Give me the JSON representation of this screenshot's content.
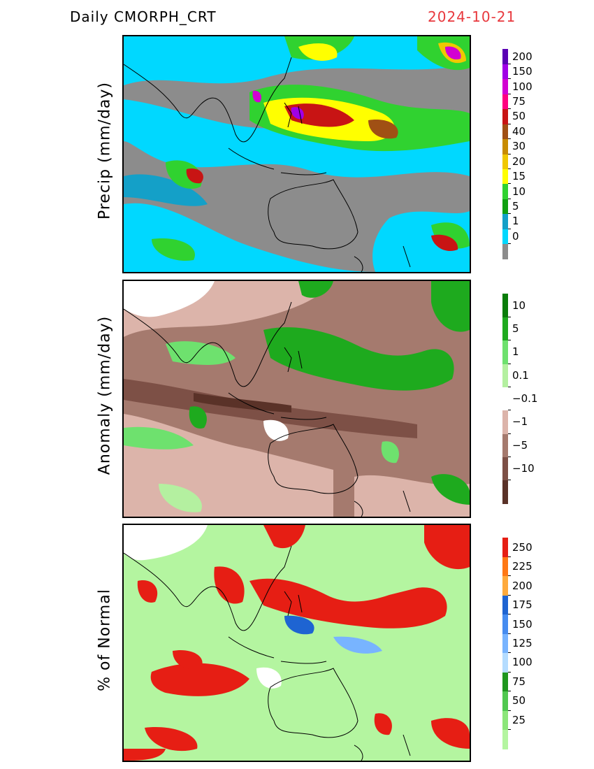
{
  "header": {
    "title": "Daily CMORPH_CRT",
    "date": "2024-10-21"
  },
  "panels": [
    {
      "id": "precip",
      "ylabel": "Precip (mm/day)",
      "colorbar": [
        {
          "color": "#8c8c8c",
          "label": ""
        },
        {
          "color": "#00d8ff",
          "label": "0"
        },
        {
          "color": "#14a0c8",
          "label": "1"
        },
        {
          "color": "#10a010",
          "label": "5"
        },
        {
          "color": "#30d230",
          "label": "10"
        },
        {
          "color": "#ffff00",
          "label": "15"
        },
        {
          "color": "#f0c800",
          "label": "20"
        },
        {
          "color": "#c88c00",
          "label": "30"
        },
        {
          "color": "#a05014",
          "label": "40"
        },
        {
          "color": "#c81414",
          "label": "50"
        },
        {
          "color": "#ff0080",
          "label": "75"
        },
        {
          "color": "#d200d2",
          "label": "100"
        },
        {
          "color": "#a000e6",
          "label": "150"
        },
        {
          "color": "#5a00b4",
          "label": "200"
        }
      ]
    },
    {
      "id": "anomaly",
      "ylabel": "Anomaly (mm/day)",
      "colorbar": [
        {
          "color": "#5a3228",
          "label": ""
        },
        {
          "color": "#7d5046",
          "label": "−10"
        },
        {
          "color": "#a57a6e",
          "label": "−5"
        },
        {
          "color": "#dcb4aa",
          "label": "−1"
        },
        {
          "color": "#ffffff",
          "label": "−0.1"
        },
        {
          "color": "#b4f0a0",
          "label": "0.1"
        },
        {
          "color": "#6ee16e",
          "label": "1"
        },
        {
          "color": "#1eaa1e",
          "label": "5"
        },
        {
          "color": "#0a7d0a",
          "label": "10"
        }
      ]
    },
    {
      "id": "percent",
      "ylabel": "% of Normal",
      "colorbar": [
        {
          "color": "#b4f5a0",
          "label": ""
        },
        {
          "color": "#8ce67a",
          "label": "25"
        },
        {
          "color": "#50c850",
          "label": "50"
        },
        {
          "color": "#1e961e",
          "label": "75"
        },
        {
          "color": "#b4dcff",
          "label": "100"
        },
        {
          "color": "#78b4ff",
          "label": "125"
        },
        {
          "color": "#468cf0",
          "label": "150"
        },
        {
          "color": "#1e64d2",
          "label": "175"
        },
        {
          "color": "#ffaa3c",
          "label": "200"
        },
        {
          "color": "#ff7814",
          "label": "225"
        },
        {
          "color": "#e61e14",
          "label": "250"
        }
      ]
    }
  ]
}
